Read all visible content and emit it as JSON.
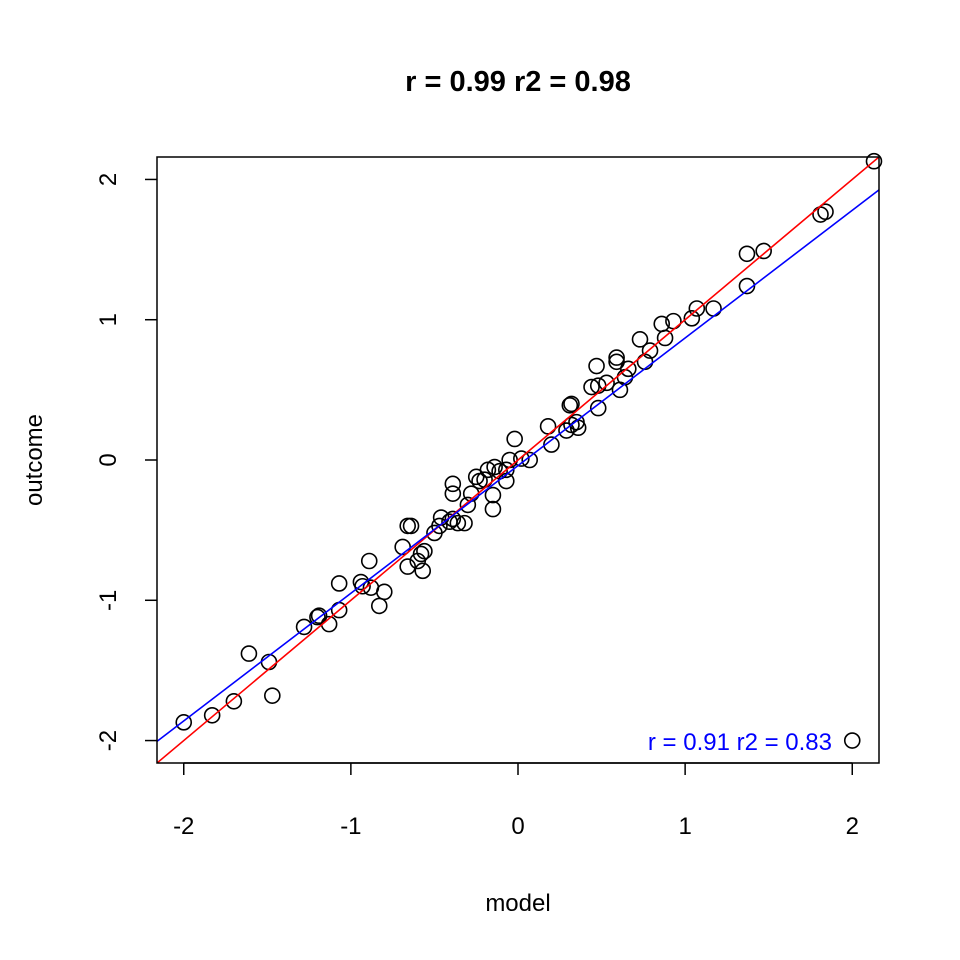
{
  "chart_data": {
    "type": "scatter",
    "title": "r = 0.99  r2 =  0.98",
    "xlabel": "model",
    "ylabel": "outcome",
    "xlim": [
      -2.16,
      2.16
    ],
    "ylim": [
      -2.16,
      2.16
    ],
    "x_ticks": [
      -2,
      -1,
      0,
      1,
      2
    ],
    "y_ticks": [
      -2,
      -1,
      0,
      1,
      2
    ],
    "x_tick_labels": [
      "-2",
      "-1",
      "0",
      "1",
      "2"
    ],
    "y_tick_labels": [
      "-2",
      "-1",
      "0",
      "1",
      "2"
    ],
    "grid": false,
    "marker": "open-circle",
    "annotation": {
      "text": "r = 0.91  r2 =  0.83",
      "color": "#0000ff",
      "placement": "bottom-right"
    },
    "lines": [
      {
        "color": "#ff0000",
        "intercept": 0,
        "slope": 1
      },
      {
        "color": "#0000ff",
        "intercept": -0.04,
        "slope": 0.91
      }
    ],
    "points": [
      [
        -2.0,
        -1.87
      ],
      [
        -1.83,
        -1.82
      ],
      [
        -1.7,
        -1.72
      ],
      [
        -1.47,
        -1.68
      ],
      [
        -1.61,
        -1.38
      ],
      [
        -1.49,
        -1.44
      ],
      [
        -1.28,
        -1.19
      ],
      [
        -1.2,
        -1.12
      ],
      [
        -1.19,
        -1.11
      ],
      [
        -1.13,
        -1.17
      ],
      [
        -1.07,
        -1.07
      ],
      [
        -1.07,
        -0.88
      ],
      [
        -0.94,
        -0.87
      ],
      [
        -0.93,
        -0.9
      ],
      [
        -0.89,
        -0.72
      ],
      [
        -0.88,
        -0.91
      ],
      [
        -0.83,
        -1.04
      ],
      [
        -0.8,
        -0.94
      ],
      [
        -0.69,
        -0.62
      ],
      [
        -0.66,
        -0.47
      ],
      [
        -0.64,
        -0.47
      ],
      [
        -0.66,
        -0.76
      ],
      [
        -0.58,
        -0.67
      ],
      [
        -0.56,
        -0.65
      ],
      [
        -0.6,
        -0.72
      ],
      [
        -0.57,
        -0.79
      ],
      [
        -0.5,
        -0.52
      ],
      [
        -0.47,
        -0.47
      ],
      [
        -0.46,
        -0.41
      ],
      [
        -0.41,
        -0.44
      ],
      [
        -0.39,
        -0.42
      ],
      [
        -0.36,
        -0.45
      ],
      [
        -0.32,
        -0.45
      ],
      [
        -0.3,
        -0.32
      ],
      [
        -0.39,
        -0.17
      ],
      [
        -0.39,
        -0.24
      ],
      [
        -0.28,
        -0.24
      ],
      [
        -0.25,
        -0.12
      ],
      [
        -0.23,
        -0.15
      ],
      [
        -0.2,
        -0.14
      ],
      [
        -0.15,
        -0.25
      ],
      [
        -0.15,
        -0.35
      ],
      [
        -0.18,
        -0.07
      ],
      [
        -0.14,
        -0.05
      ],
      [
        -0.11,
        -0.08
      ],
      [
        -0.07,
        -0.15
      ],
      [
        -0.07,
        -0.07
      ],
      [
        -0.05,
        0.0
      ],
      [
        -0.02,
        0.15
      ],
      [
        0.02,
        0.01
      ],
      [
        0.07,
        0.0
      ],
      [
        0.18,
        0.24
      ],
      [
        0.2,
        0.11
      ],
      [
        0.29,
        0.21
      ],
      [
        0.31,
        0.39
      ],
      [
        0.32,
        0.4
      ],
      [
        0.32,
        0.25
      ],
      [
        0.35,
        0.27
      ],
      [
        0.36,
        0.23
      ],
      [
        0.44,
        0.52
      ],
      [
        0.47,
        0.67
      ],
      [
        0.48,
        0.53
      ],
      [
        0.53,
        0.55
      ],
      [
        0.48,
        0.37
      ],
      [
        0.59,
        0.73
      ],
      [
        0.59,
        0.7
      ],
      [
        0.61,
        0.5
      ],
      [
        0.64,
        0.59
      ],
      [
        0.66,
        0.65
      ],
      [
        0.73,
        0.86
      ],
      [
        0.76,
        0.7
      ],
      [
        0.79,
        0.78
      ],
      [
        0.86,
        0.97
      ],
      [
        0.88,
        0.87
      ],
      [
        0.93,
        0.99
      ],
      [
        1.04,
        1.01
      ],
      [
        1.07,
        1.08
      ],
      [
        1.17,
        1.08
      ],
      [
        1.37,
        1.47
      ],
      [
        1.37,
        1.24
      ],
      [
        1.47,
        1.49
      ],
      [
        1.81,
        1.75
      ],
      [
        1.84,
        1.77
      ],
      [
        2.13,
        2.13
      ],
      [
        2.0,
        -2.0
      ]
    ]
  }
}
